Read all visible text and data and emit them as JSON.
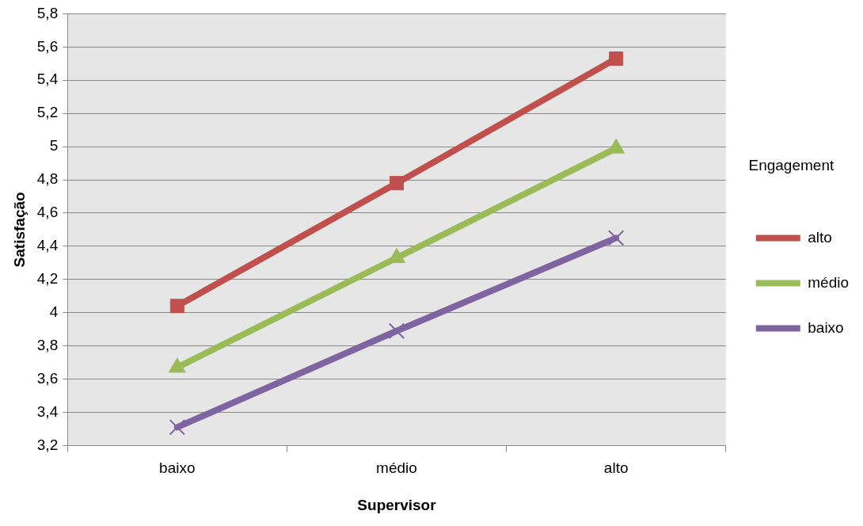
{
  "chart_data": {
    "type": "line",
    "xlabel": "Supervisor",
    "ylabel": "Satisfação",
    "legend_title": "Engagement",
    "categories": [
      "baixo",
      "médio",
      "alto"
    ],
    "series": [
      {
        "name": "alto",
        "color": "#c0504d",
        "marker": "square",
        "values": [
          4.04,
          4.78,
          5.53
        ]
      },
      {
        "name": "médio",
        "color": "#9bbb59",
        "marker": "triangle",
        "values": [
          3.67,
          4.33,
          4.99
        ]
      },
      {
        "name": "baixo",
        "color": "#8064a2",
        "marker": "cross",
        "values": [
          3.31,
          3.89,
          4.45
        ]
      }
    ],
    "ylim": [
      3.2,
      5.8
    ],
    "yticks": [
      {
        "value": 3.2,
        "label": "3,2"
      },
      {
        "value": 3.4,
        "label": "3,4"
      },
      {
        "value": 3.6,
        "label": "3,6"
      },
      {
        "value": 3.8,
        "label": "3,8"
      },
      4,
      {
        "value": 4.2,
        "label": "4,2"
      },
      {
        "value": 4.4,
        "label": "4,4"
      },
      {
        "value": 4.6,
        "label": "4,6"
      },
      {
        "value": 4.8,
        "label": "4,8"
      },
      5,
      {
        "value": 5.2,
        "label": "5,2"
      },
      {
        "value": 5.4,
        "label": "5,4"
      },
      {
        "value": 5.6,
        "label": "5,6"
      },
      {
        "value": 5.8,
        "label": "5,8"
      }
    ],
    "grid": "y",
    "legend": "right"
  }
}
